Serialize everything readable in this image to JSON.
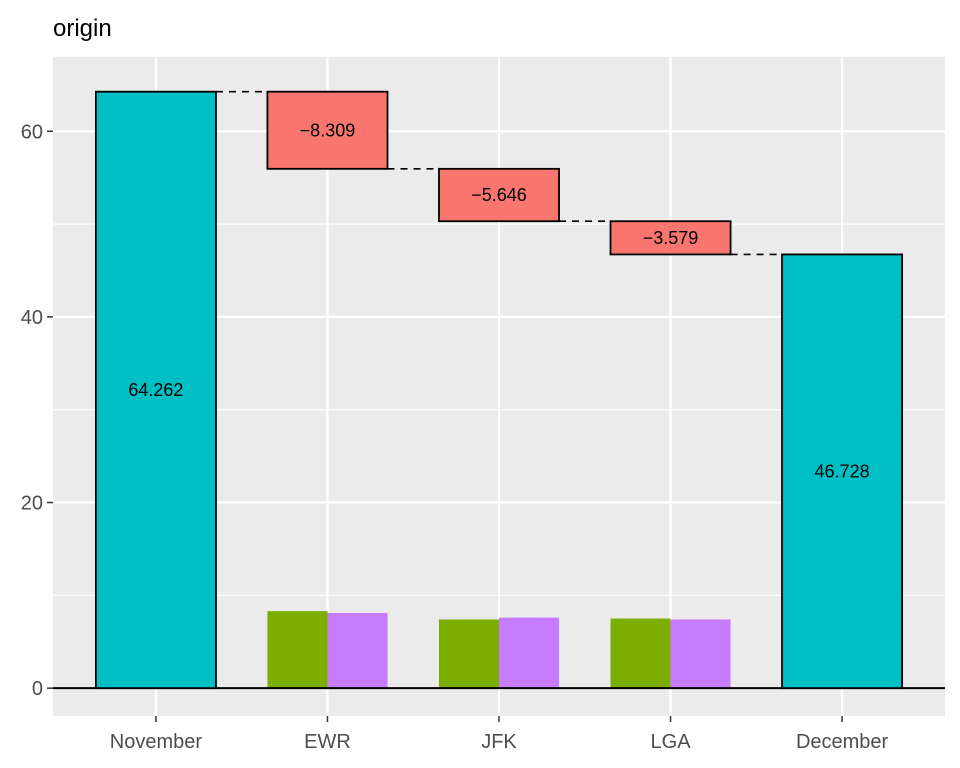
{
  "chart_data": {
    "type": "bar",
    "title": "origin",
    "xlabel": "",
    "ylabel": "",
    "categories": [
      "November",
      "EWR",
      "JFK",
      "LGA",
      "December"
    ],
    "ylim": [
      -3,
      68
    ],
    "y_ticks": [
      0,
      20,
      40,
      60
    ],
    "grid": true,
    "totals": [
      {
        "category": "November",
        "value": 64.262,
        "label": "64.262"
      },
      {
        "category": "December",
        "value": 46.728,
        "label": "46.728"
      }
    ],
    "changes": [
      {
        "category": "EWR",
        "from": 64.262,
        "to": 55.953,
        "delta": -8.309,
        "label": "−8.309"
      },
      {
        "category": "JFK",
        "from": 55.953,
        "to": 50.307,
        "delta": -5.646,
        "label": "−5.646"
      },
      {
        "category": "LGA",
        "from": 50.307,
        "to": 46.728,
        "delta": -3.579,
        "label": "−3.579"
      }
    ],
    "series": [
      {
        "values": [
          null,
          8.3,
          7.4,
          7.5,
          null
        ]
      },
      {
        "values": [
          null,
          8.1,
          7.6,
          7.4,
          null
        ]
      }
    ],
    "colors": {
      "panel": "#EBEBEB",
      "grid": "#FFFFFF",
      "total": "#00BFC4",
      "decrease": "#F8766D",
      "series1": "#7CAE00",
      "series2": "#C77CFF",
      "outline": "#000000",
      "axis_text": "#4D4D4D"
    }
  }
}
